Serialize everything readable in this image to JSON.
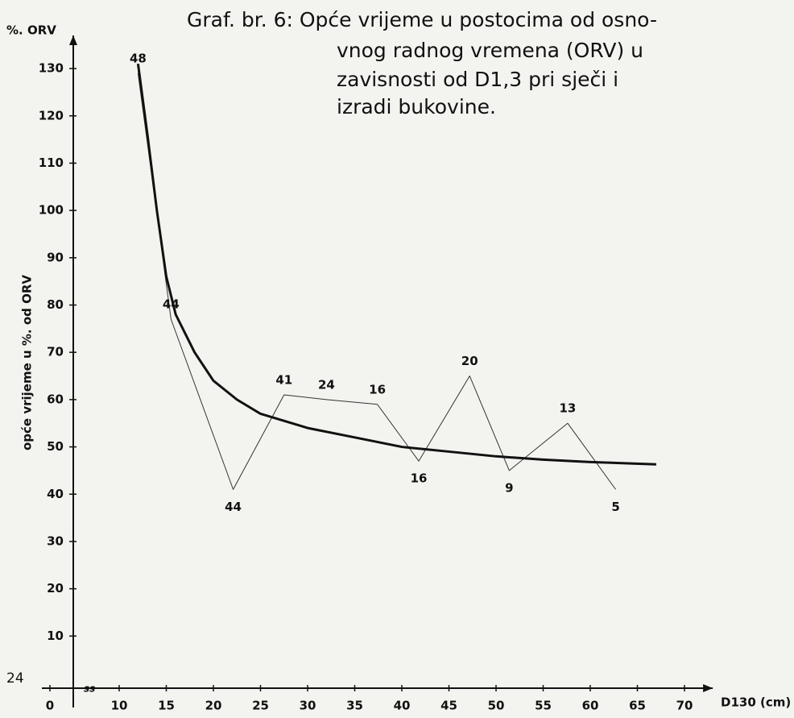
{
  "chart_data": {
    "type": "line",
    "title_lines": [
      "Graf. br. 6: Opće vrijeme u postocima od osno-",
      "vnog radnog vremena (ORV) u",
      "zavisnosti od D1,3 pri sječi i",
      "izradi bukovine."
    ],
    "y_unit": "%. ORV",
    "y_label": "opće vrijeme u %. od ORV",
    "x_label": "D130 (cm)",
    "page_number": "24",
    "axis_break": true,
    "xlim": [
      8,
      73
    ],
    "xticks": [
      0,
      10,
      15,
      20,
      25,
      30,
      35,
      40,
      45,
      50,
      55,
      60,
      65,
      70
    ],
    "ylim": [
      0,
      137
    ],
    "yticks": [
      10,
      20,
      30,
      40,
      50,
      60,
      70,
      80,
      90,
      100,
      110,
      120,
      130
    ],
    "series": [
      {
        "color": "#333333",
        "width": 1,
        "x": [
          12,
          15.5,
          22.1,
          27.5,
          32,
          37.4,
          41.8,
          47.2,
          51.4,
          57.6,
          62.7
        ],
        "values": [
          129,
          77,
          41,
          61,
          60,
          59,
          47,
          65,
          45,
          55,
          41
        ],
        "point_labels": [
          "48",
          "44",
          "44",
          "41",
          "24",
          "16",
          "16",
          "20",
          "9",
          "13",
          "5"
        ],
        "label_side": [
          "above",
          "above",
          "below",
          "above",
          "above",
          "above",
          "below",
          "above",
          "below",
          "above",
          "below"
        ]
      },
      {
        "color": "#111111",
        "width": 3,
        "x": [
          12,
          13,
          14,
          15,
          16,
          18,
          20,
          22.5,
          25,
          30,
          35,
          40,
          45,
          50,
          55,
          60,
          67
        ],
        "values": [
          131,
          116,
          100,
          86,
          78,
          70,
          64,
          60,
          57,
          54,
          52,
          50,
          49,
          48,
          47.3,
          46.8,
          46.3
        ]
      }
    ]
  }
}
